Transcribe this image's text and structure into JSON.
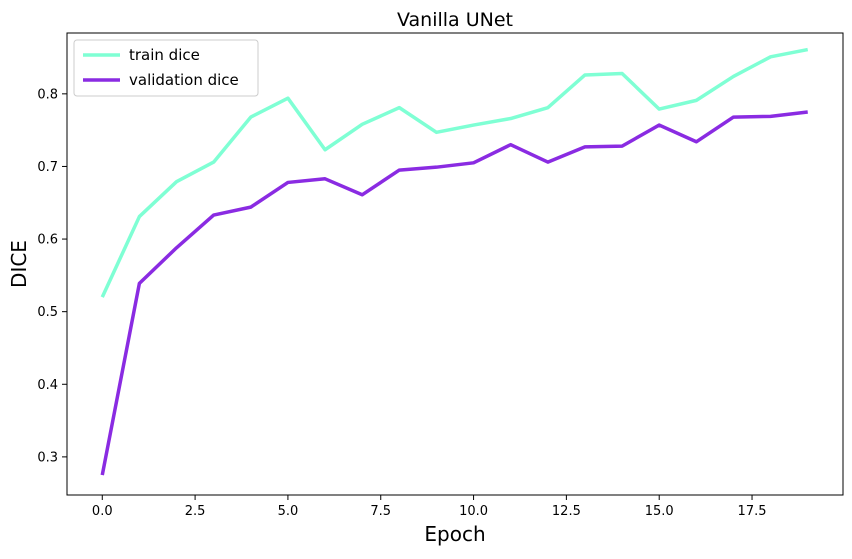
{
  "chart_data": {
    "type": "line",
    "title": "Vanilla UNet",
    "xlabel": "Epoch",
    "ylabel": "DICE",
    "xlim": [
      -0.95,
      19.95
    ],
    "ylim": [
      0.2475,
      0.8838
    ],
    "grid": false,
    "legend_position": "upper-left",
    "x_ticks": [
      0.0,
      2.5,
      5.0,
      7.5,
      10.0,
      12.5,
      15.0,
      17.5
    ],
    "x_tick_labels": [
      "0.0",
      "2.5",
      "5.0",
      "7.5",
      "10.0",
      "12.5",
      "15.0",
      "17.5"
    ],
    "y_ticks": [
      0.3,
      0.4,
      0.5,
      0.6,
      0.7,
      0.8
    ],
    "y_tick_labels": [
      "0.3",
      "0.4",
      "0.5",
      "0.6",
      "0.7",
      "0.8"
    ],
    "x": [
      0,
      1,
      2,
      3,
      4,
      5,
      6,
      7,
      8,
      9,
      10,
      11,
      12,
      13,
      14,
      15,
      16,
      17,
      18,
      19
    ],
    "series": [
      {
        "name": "train dice",
        "color": "#7fffd4",
        "values": [
          0.52,
          0.631,
          0.679,
          0.706,
          0.768,
          0.794,
          0.723,
          0.758,
          0.781,
          0.747,
          0.757,
          0.766,
          0.781,
          0.826,
          0.828,
          0.779,
          0.791,
          0.824,
          0.851,
          0.861
        ]
      },
      {
        "name": "validation dice",
        "color": "#8a2be2",
        "values": [
          0.275,
          0.539,
          0.588,
          0.633,
          0.644,
          0.678,
          0.683,
          0.661,
          0.695,
          0.699,
          0.705,
          0.73,
          0.706,
          0.727,
          0.728,
          0.757,
          0.734,
          0.768,
          0.769,
          0.775
        ]
      }
    ]
  }
}
